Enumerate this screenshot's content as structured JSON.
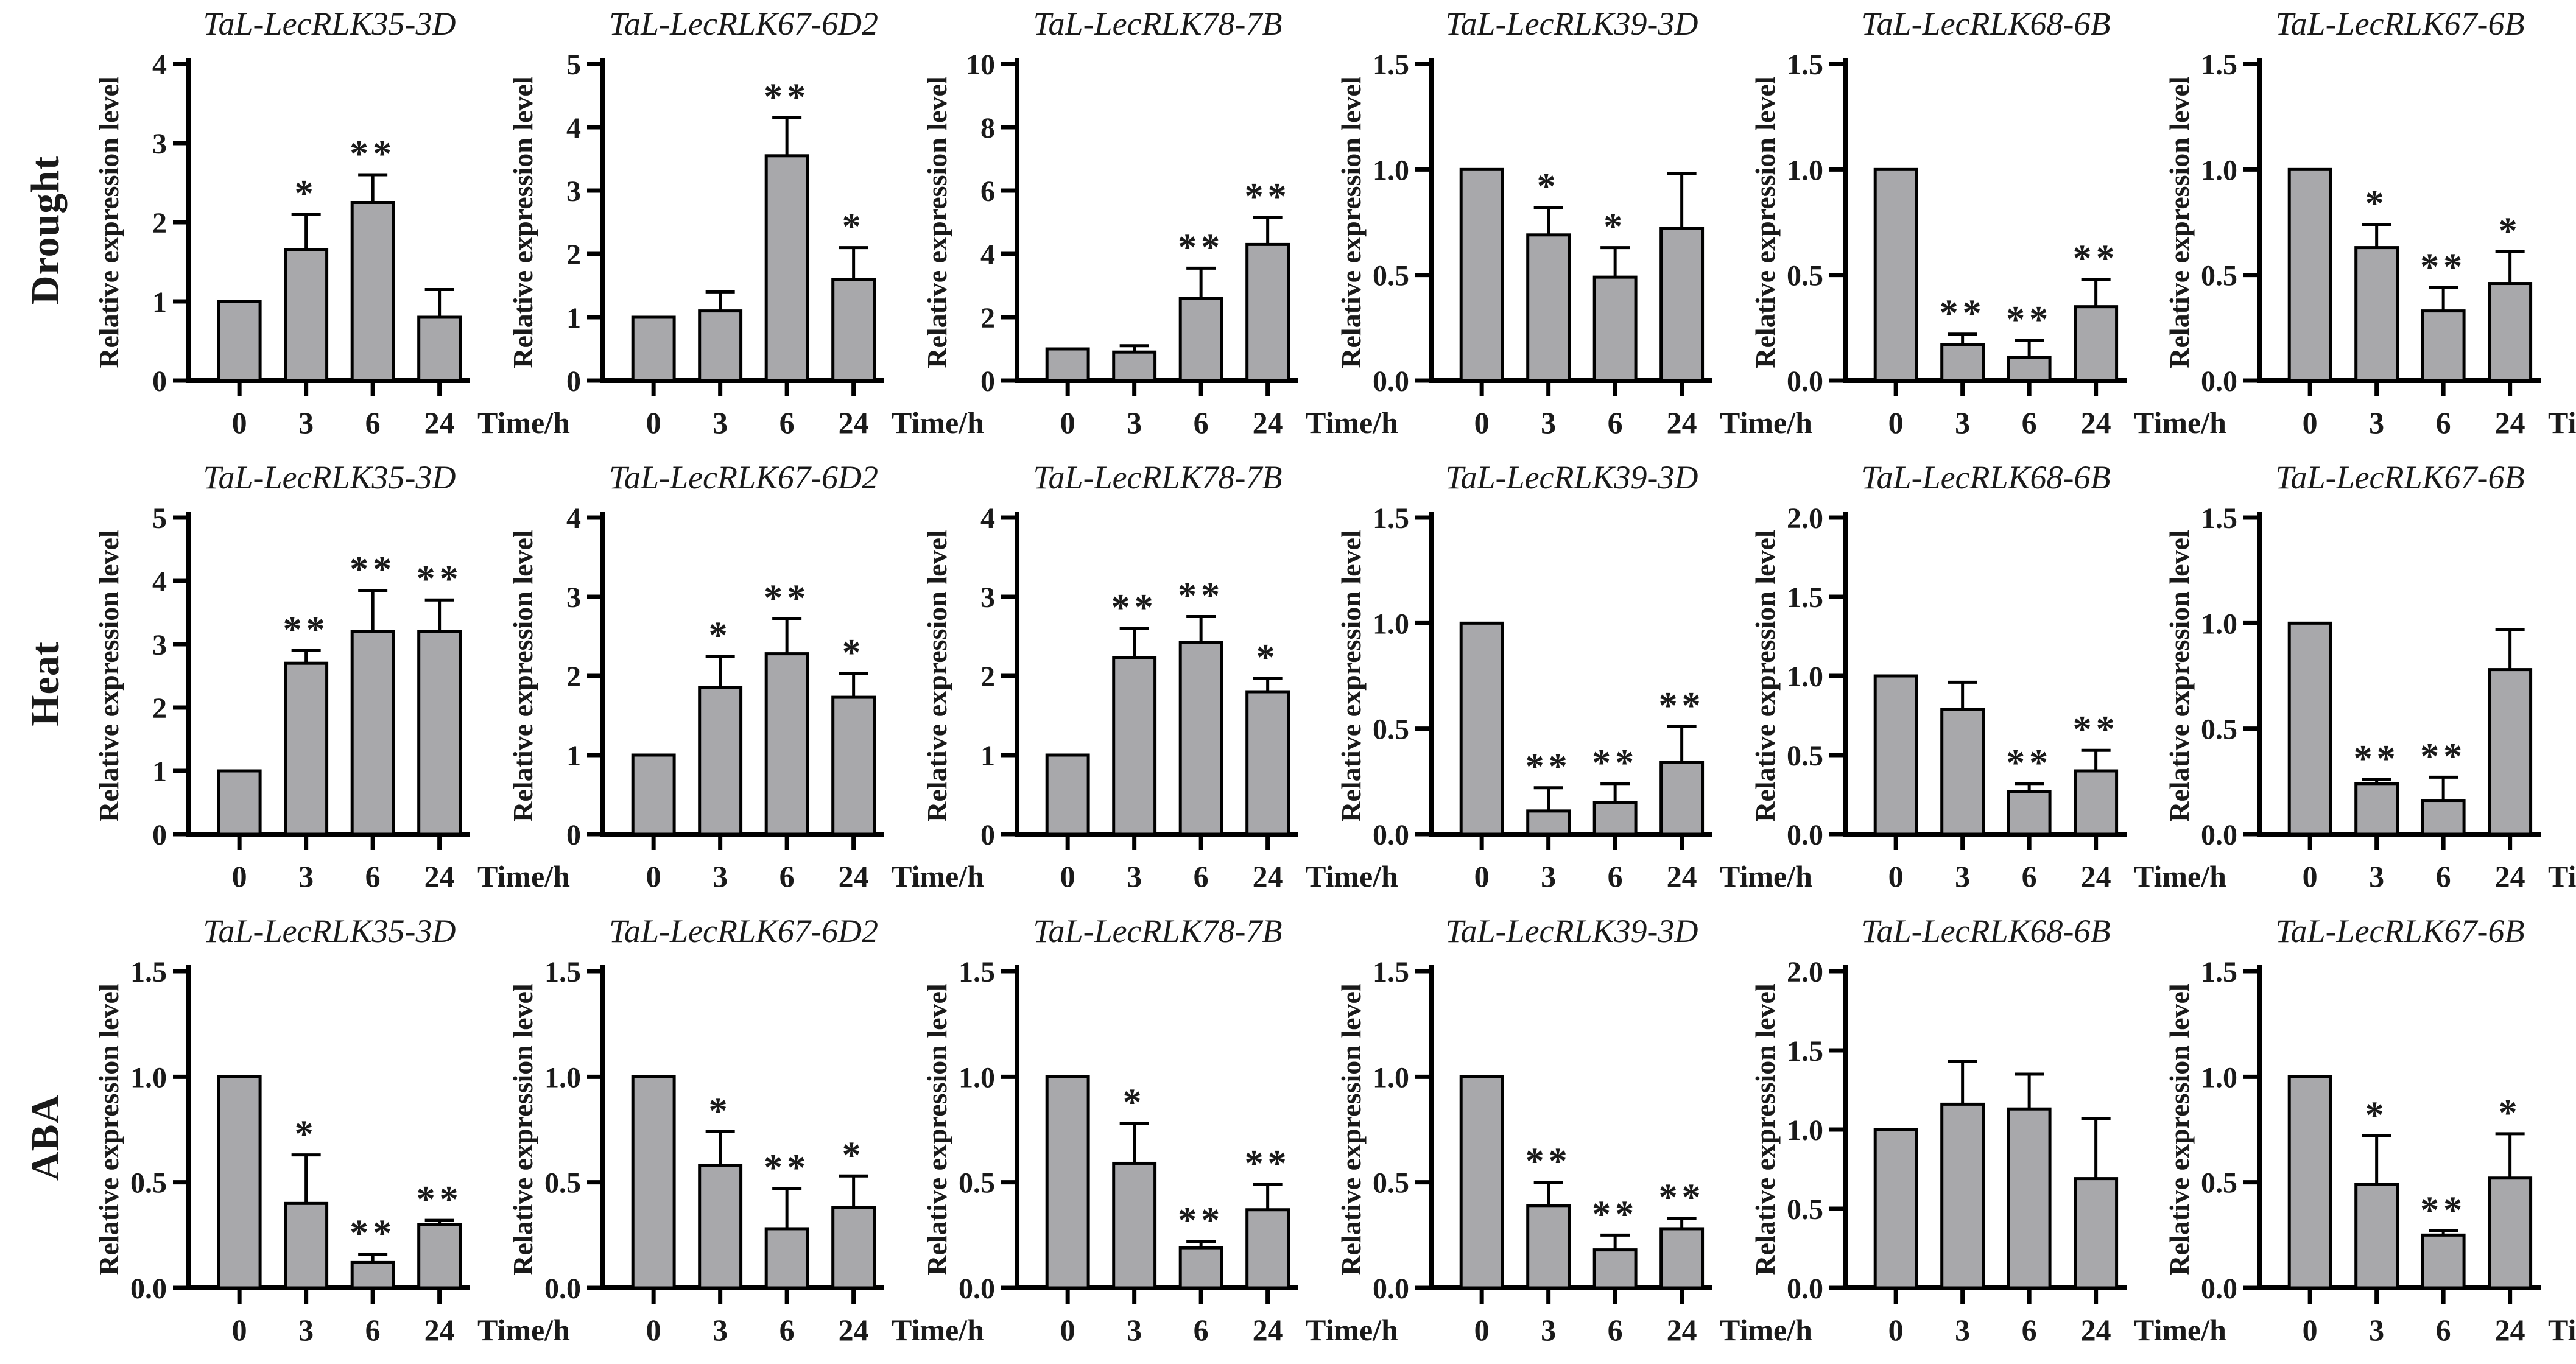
{
  "figure": {
    "row_labels": [
      "Drought",
      "Heat",
      "ABA"
    ],
    "ylabel": "Relative expression level",
    "xlabel": "Time/h",
    "categories": [
      "0",
      "3",
      "6",
      "24"
    ],
    "bar_color": "#a8a8ab",
    "axis_color": "#000000",
    "text_color": "#1a1a1a"
  },
  "chart_data": [
    {
      "type": "bar",
      "treatment": "Drought",
      "title": "TaL-LecRLK35-3D",
      "categories": [
        "0",
        "3",
        "6",
        "24"
      ],
      "values": [
        1.0,
        1.65,
        2.25,
        0.8
      ],
      "errors": [
        0,
        0.45,
        0.35,
        0.35
      ],
      "significance": [
        "",
        "*",
        "**",
        ""
      ],
      "ylim": [
        0,
        4
      ],
      "yticks": [
        "0",
        "1",
        "2",
        "3",
        "4"
      ]
    },
    {
      "type": "bar",
      "treatment": "Drought",
      "title": "TaL-LecRLK67-6D2",
      "categories": [
        "0",
        "3",
        "6",
        "24"
      ],
      "values": [
        1.0,
        1.1,
        3.55,
        1.6
      ],
      "errors": [
        0,
        0.3,
        0.6,
        0.5
      ],
      "significance": [
        "",
        "",
        "**",
        "*"
      ],
      "ylim": [
        0,
        5
      ],
      "yticks": [
        "0",
        "1",
        "2",
        "3",
        "4",
        "5"
      ]
    },
    {
      "type": "bar",
      "treatment": "Drought",
      "title": "TaL-LecRLK78-7B",
      "categories": [
        "0",
        "3",
        "6",
        "24"
      ],
      "values": [
        1.0,
        0.9,
        2.6,
        4.3
      ],
      "errors": [
        0,
        0.2,
        0.95,
        0.85
      ],
      "significance": [
        "",
        "",
        "**",
        "**"
      ],
      "ylim": [
        0,
        10
      ],
      "yticks": [
        "0",
        "2",
        "4",
        "6",
        "8",
        "10"
      ]
    },
    {
      "type": "bar",
      "treatment": "Drought",
      "title": "TaL-LecRLK39-3D",
      "categories": [
        "0",
        "3",
        "6",
        "24"
      ],
      "values": [
        1.0,
        0.69,
        0.49,
        0.72
      ],
      "errors": [
        0,
        0.13,
        0.14,
        0.26
      ],
      "significance": [
        "",
        "*",
        "*",
        ""
      ],
      "ylim": [
        0,
        1.5
      ],
      "yticks": [
        "0.0",
        "0.5",
        "1.0",
        "1.5"
      ]
    },
    {
      "type": "bar",
      "treatment": "Drought",
      "title": "TaL-LecRLK68-6B",
      "categories": [
        "0",
        "3",
        "6",
        "24"
      ],
      "values": [
        1.0,
        0.17,
        0.11,
        0.35
      ],
      "errors": [
        0,
        0.05,
        0.08,
        0.13
      ],
      "significance": [
        "",
        "**",
        "**",
        "**"
      ],
      "ylim": [
        0,
        1.5
      ],
      "yticks": [
        "0.0",
        "0.5",
        "1.0",
        "1.5"
      ]
    },
    {
      "type": "bar",
      "treatment": "Drought",
      "title": "TaL-LecRLK67-6B",
      "categories": [
        "0",
        "3",
        "6",
        "24"
      ],
      "values": [
        1.0,
        0.63,
        0.33,
        0.46
      ],
      "errors": [
        0,
        0.11,
        0.11,
        0.15
      ],
      "significance": [
        "",
        "*",
        "**",
        "*"
      ],
      "ylim": [
        0,
        1.5
      ],
      "yticks": [
        "0.0",
        "0.5",
        "1.0",
        "1.5"
      ]
    },
    {
      "type": "bar",
      "treatment": "Heat",
      "title": "TaL-LecRLK35-3D",
      "categories": [
        "0",
        "3",
        "6",
        "24"
      ],
      "values": [
        1.0,
        2.7,
        3.2,
        3.2
      ],
      "errors": [
        0,
        0.2,
        0.65,
        0.5
      ],
      "significance": [
        "",
        "**",
        "**",
        "**"
      ],
      "ylim": [
        0,
        5
      ],
      "yticks": [
        "0",
        "1",
        "2",
        "3",
        "4",
        "5"
      ]
    },
    {
      "type": "bar",
      "treatment": "Heat",
      "title": "TaL-LecRLK67-6D2",
      "categories": [
        "0",
        "3",
        "6",
        "24"
      ],
      "values": [
        1.0,
        1.85,
        2.28,
        1.73
      ],
      "errors": [
        0,
        0.4,
        0.44,
        0.3
      ],
      "significance": [
        "",
        "*",
        "**",
        "*"
      ],
      "ylim": [
        0,
        4
      ],
      "yticks": [
        "0",
        "1",
        "2",
        "3",
        "4"
      ]
    },
    {
      "type": "bar",
      "treatment": "Heat",
      "title": "TaL-LecRLK78-7B",
      "categories": [
        "0",
        "3",
        "6",
        "24"
      ],
      "values": [
        1.0,
        2.23,
        2.42,
        1.8
      ],
      "errors": [
        0,
        0.37,
        0.33,
        0.17
      ],
      "significance": [
        "",
        "**",
        "**",
        "*"
      ],
      "ylim": [
        0,
        4
      ],
      "yticks": [
        "0",
        "1",
        "2",
        "3",
        "4"
      ]
    },
    {
      "type": "bar",
      "treatment": "Heat",
      "title": "TaL-LecRLK39-3D",
      "categories": [
        "0",
        "3",
        "6",
        "24"
      ],
      "values": [
        1.0,
        0.11,
        0.15,
        0.34
      ],
      "errors": [
        0,
        0.11,
        0.09,
        0.17
      ],
      "significance": [
        "",
        "**",
        "**",
        "**"
      ],
      "ylim": [
        0,
        1.5
      ],
      "yticks": [
        "0.0",
        "0.5",
        "1.0",
        "1.5"
      ]
    },
    {
      "type": "bar",
      "treatment": "Heat",
      "title": "TaL-LecRLK68-6B",
      "categories": [
        "0",
        "3",
        "6",
        "24"
      ],
      "values": [
        1.0,
        0.79,
        0.27,
        0.4
      ],
      "errors": [
        0,
        0.17,
        0.05,
        0.13
      ],
      "significance": [
        "",
        "",
        "**",
        "**"
      ],
      "ylim": [
        0,
        2
      ],
      "yticks": [
        "0.0",
        "0.5",
        "1.0",
        "1.5",
        "2.0"
      ]
    },
    {
      "type": "bar",
      "treatment": "Heat",
      "title": "TaL-LecRLK67-6B",
      "categories": [
        "0",
        "3",
        "6",
        "24"
      ],
      "values": [
        1.0,
        0.24,
        0.16,
        0.78
      ],
      "errors": [
        0,
        0.02,
        0.11,
        0.19
      ],
      "significance": [
        "",
        "**",
        "**",
        ""
      ],
      "ylim": [
        0,
        1.5
      ],
      "yticks": [
        "0.0",
        "0.5",
        "1.0",
        "1.5"
      ]
    },
    {
      "type": "bar",
      "treatment": "ABA",
      "title": "TaL-LecRLK35-3D",
      "categories": [
        "0",
        "3",
        "6",
        "24"
      ],
      "values": [
        1.0,
        0.4,
        0.12,
        0.3
      ],
      "errors": [
        0,
        0.23,
        0.04,
        0.02
      ],
      "significance": [
        "",
        "*",
        "**",
        "**"
      ],
      "ylim": [
        0,
        1.5
      ],
      "yticks": [
        "0.0",
        "0.5",
        "1.0",
        "1.5"
      ]
    },
    {
      "type": "bar",
      "treatment": "ABA",
      "title": "TaL-LecRLK67-6D2",
      "categories": [
        "0",
        "3",
        "6",
        "24"
      ],
      "values": [
        1.0,
        0.58,
        0.28,
        0.38
      ],
      "errors": [
        0,
        0.16,
        0.19,
        0.15
      ],
      "significance": [
        "",
        "*",
        "**",
        "*"
      ],
      "ylim": [
        0,
        1.5
      ],
      "yticks": [
        "0.0",
        "0.5",
        "1.0",
        "1.5"
      ]
    },
    {
      "type": "bar",
      "treatment": "ABA",
      "title": "TaL-LecRLK78-7B",
      "categories": [
        "0",
        "3",
        "6",
        "24"
      ],
      "values": [
        1.0,
        0.59,
        0.19,
        0.37
      ],
      "errors": [
        0,
        0.19,
        0.03,
        0.12
      ],
      "significance": [
        "",
        "*",
        "**",
        "**"
      ],
      "ylim": [
        0,
        1.5
      ],
      "yticks": [
        "0.0",
        "0.5",
        "1.0",
        "1.5"
      ]
    },
    {
      "type": "bar",
      "treatment": "ABA",
      "title": "TaL-LecRLK39-3D",
      "categories": [
        "0",
        "3",
        "6",
        "24"
      ],
      "values": [
        1.0,
        0.39,
        0.18,
        0.28
      ],
      "errors": [
        0,
        0.11,
        0.07,
        0.05
      ],
      "significance": [
        "",
        "**",
        "**",
        "**"
      ],
      "ylim": [
        0,
        1.5
      ],
      "yticks": [
        "0.0",
        "0.5",
        "1.0",
        "1.5"
      ]
    },
    {
      "type": "bar",
      "treatment": "ABA",
      "title": "TaL-LecRLK68-6B",
      "categories": [
        "0",
        "3",
        "6",
        "24"
      ],
      "values": [
        1.0,
        1.16,
        1.13,
        0.69
      ],
      "errors": [
        0,
        0.27,
        0.22,
        0.38
      ],
      "significance": [
        "",
        "",
        "",
        ""
      ],
      "ylim": [
        0,
        2
      ],
      "yticks": [
        "0.0",
        "0.5",
        "1.0",
        "1.5",
        "2.0"
      ]
    },
    {
      "type": "bar",
      "treatment": "ABA",
      "title": "TaL-LecRLK67-6B",
      "categories": [
        "0",
        "3",
        "6",
        "24"
      ],
      "values": [
        1.0,
        0.49,
        0.25,
        0.52
      ],
      "errors": [
        0,
        0.23,
        0.02,
        0.21
      ],
      "significance": [
        "",
        "*",
        "**",
        "*"
      ],
      "ylim": [
        0,
        1.5
      ],
      "yticks": [
        "0.0",
        "0.5",
        "1.0",
        "1.5"
      ]
    }
  ]
}
